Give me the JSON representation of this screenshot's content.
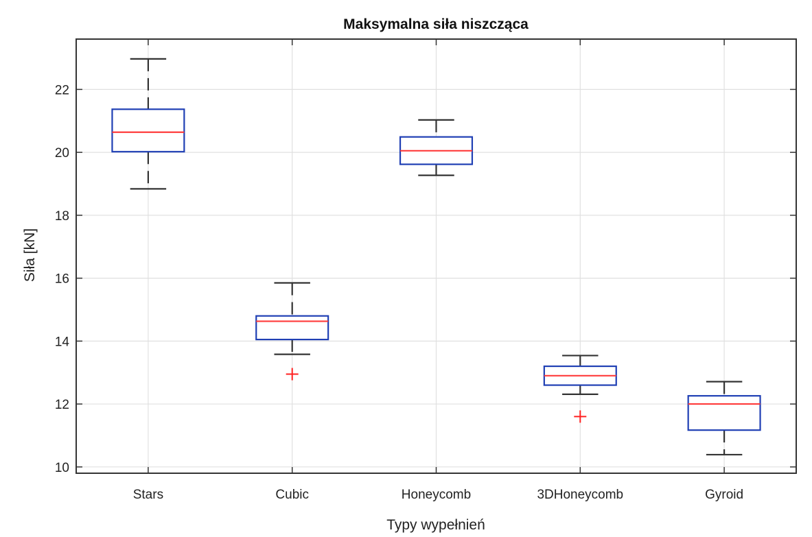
{
  "chart_data": {
    "type": "boxplot",
    "title": "Maksymalna siła niszcząca",
    "xlabel": "Typy wypełnień",
    "ylabel": "Siła [kN]",
    "categories": [
      "Stars",
      "Cubic",
      "Honeycomb",
      "3DHoneycomb",
      "Gyroid"
    ],
    "ylim": [
      9.8,
      23.6
    ],
    "yticks": [
      10,
      12,
      14,
      16,
      18,
      20,
      22
    ],
    "grid": true,
    "boxes": [
      {
        "category": "Stars",
        "whisker_low": 18.84,
        "q1": 20.02,
        "median": 20.64,
        "q3": 21.37,
        "whisker_high": 22.97,
        "outliers": []
      },
      {
        "category": "Cubic",
        "whisker_low": 13.58,
        "q1": 14.05,
        "median": 14.63,
        "q3": 14.8,
        "whisker_high": 15.85,
        "outliers": [
          12.95
        ]
      },
      {
        "category": "Honeycomb",
        "whisker_low": 19.27,
        "q1": 19.62,
        "median": 20.05,
        "q3": 20.49,
        "whisker_high": 21.03,
        "outliers": []
      },
      {
        "category": "3DHoneycomb",
        "whisker_low": 12.31,
        "q1": 12.6,
        "median": 12.9,
        "q3": 13.2,
        "whisker_high": 13.54,
        "outliers": [
          11.6
        ]
      },
      {
        "category": "Gyroid",
        "whisker_low": 10.39,
        "q1": 11.17,
        "median": 12.0,
        "q3": 12.26,
        "whisker_high": 12.71,
        "outliers": []
      }
    ],
    "colors": {
      "box": "#1f3fb4",
      "median": "#ff3b3b",
      "whisker": "#333333",
      "outlier": "#ff2020",
      "grid": "#e0e0e0"
    }
  }
}
